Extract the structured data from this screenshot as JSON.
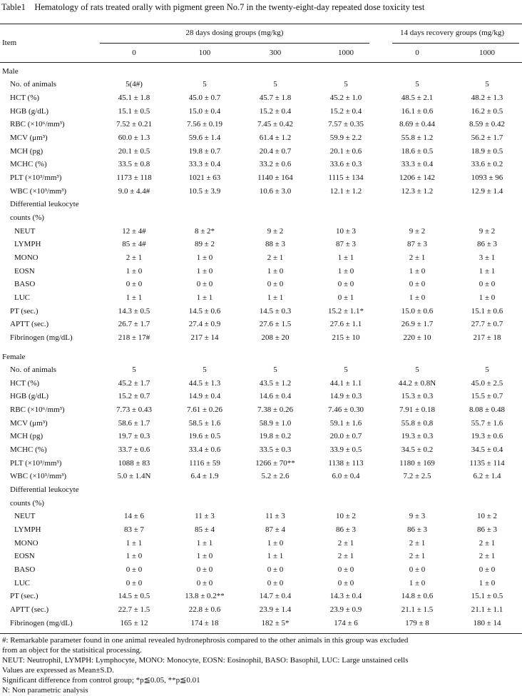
{
  "title": "Table1 Hematology of rats treated orally with pigment green No.7 in the twenty-eight-day repeated dose toxicity test",
  "header": {
    "item": "Item",
    "group1": "28 days dosing groups (mg/kg)",
    "group2": "14 days recovery groups (mg/kg)",
    "doses": [
      "0",
      "100",
      "300",
      "1000",
      "0",
      "1000"
    ]
  },
  "sections": [
    {
      "label": "Male",
      "rows": [
        {
          "item": "No. of animals",
          "values": [
            "5(4#)",
            "5",
            "5",
            "5",
            "5",
            "5"
          ]
        },
        {
          "item": "HCT (%)",
          "values": [
            "45.1 ± 1.8",
            "45.0 ± 0.7",
            "45.7 ± 1.8",
            "45.2 ± 1.0",
            "48.5 ± 2.1",
            "48.2 ± 1.3"
          ]
        },
        {
          "item": "HGB (g/dL)",
          "values": [
            "15.1 ± 0.5",
            "15.0 ± 0.4",
            "15.2 ± 0.4",
            "15.2 ± 0.4",
            "16.1 ± 0.6",
            "16.2 ± 0.5"
          ]
        },
        {
          "item": "RBC (×10⁶/mm³)",
          "values": [
            "7.52 ± 0.21",
            "7.56 ± 0.19",
            "7.45 ± 0.42",
            "7.57 ± 0.35",
            "8.69 ± 0.44",
            "8.59 ± 0.42"
          ]
        },
        {
          "item": "MCV (μm³)",
          "values": [
            "60.0 ± 1.3",
            "59.6 ± 1.4",
            "61.4 ± 1.2",
            "59.9 ± 2.2",
            "55.8 ± 1.2",
            "56.2 ± 1.7"
          ]
        },
        {
          "item": "MCH (pg)",
          "values": [
            "20.1 ± 0.5",
            "19.8 ± 0.7",
            "20.4 ± 0.7",
            "20.1 ± 0.6",
            "18.6 ± 0.5",
            "18.9 ± 0.5"
          ]
        },
        {
          "item": "MCHC (%)",
          "values": [
            "33.5 ± 0.8",
            "33.3 ± 0.4",
            "33.2 ± 0.6",
            "33.6 ± 0.3",
            "33.3 ± 0.4",
            "33.6 ± 0.2"
          ]
        },
        {
          "item": "PLT (×10³/mm³)",
          "values": [
            "1173 ± 118",
            "1021 ± 63",
            "1140 ± 164",
            "1115 ± 134",
            "1206 ± 142",
            "1093 ± 96"
          ]
        },
        {
          "item": "WBC (×10³/mm³)",
          "values": [
            "9.0 ± 4.4#",
            "10.5 ± 3.9",
            "10.6 ± 3.0",
            "12.1 ± 1.2",
            "12.3 ± 1.2",
            "12.9 ± 1.4"
          ]
        }
      ],
      "differential": {
        "label": [
          "Differential leukocyte",
          "counts (%)"
        ],
        "rows": [
          {
            "item": "NEUT",
            "values": [
              "12 ± 4#",
              "8 ± 2*",
              "9 ± 2",
              "10 ± 3",
              "9 ± 2",
              "9 ± 2"
            ]
          },
          {
            "item": "LYMPH",
            "values": [
              "85 ± 4#",
              "89 ± 2",
              "88 ± 3",
              "87 ± 3",
              "87 ± 3",
              "86 ± 3"
            ]
          },
          {
            "item": "MONO",
            "values": [
              "2 ± 1",
              "1 ± 0",
              "2 ± 1",
              "1 ± 1",
              "2 ± 1",
              "3 ± 1"
            ]
          },
          {
            "item": "EOSN",
            "values": [
              "1 ± 0",
              "1 ± 0",
              "1 ± 0",
              "1 ± 0",
              "1 ± 0",
              "1 ± 1"
            ]
          },
          {
            "item": "BASO",
            "values": [
              "0 ± 0",
              "0 ± 0",
              "0 ± 0",
              "0 ± 0",
              "0 ± 0",
              "0 ± 0"
            ]
          },
          {
            "item": "LUC",
            "values": [
              "1 ± 1",
              "1 ± 1",
              "1 ± 1",
              "0 ± 1",
              "1 ± 0",
              "1 ± 0"
            ]
          }
        ]
      },
      "rows_after": [
        {
          "item": "PT (sec.)",
          "values": [
            "14.3 ± 0.5",
            "14.5 ± 0.6",
            "14.5 ± 0.3",
            "15.2 ± 1.1*",
            "15.0 ± 0.6",
            "15.1 ± 0.6"
          ]
        },
        {
          "item": "APTT (sec.)",
          "values": [
            "26.7 ± 1.7",
            "27.4 ± 0.9",
            "27.6 ± 1.5",
            "27.6 ± 1.1",
            "26.9 ± 1.7",
            "27.7 ± 0.7"
          ]
        },
        {
          "item": "Fibrinogen (mg/dL)",
          "values": [
            "218 ± 17#",
            "217 ± 14",
            "208 ± 20",
            "215 ± 10",
            "220 ± 10",
            "217 ± 18"
          ]
        }
      ]
    },
    {
      "label": "Female",
      "rows": [
        {
          "item": "No. of animals",
          "values": [
            "5",
            "5",
            "5",
            "5",
            "5",
            "5"
          ]
        },
        {
          "item": "HCT (%)",
          "values": [
            "45.2 ± 1.7",
            "44.5 ± 1.3",
            "43.5 ± 1.2",
            "44.1 ± 1.1",
            "44.2 ± 0.8N",
            "45.0 ± 2.5"
          ]
        },
        {
          "item": "HGB (g/dL)",
          "values": [
            "15.2 ± 0.7",
            "14.9 ± 0.4",
            "14.6 ± 0.4",
            "14.9 ± 0.3",
            "15.3 ± 0.3",
            "15.5 ± 0.7"
          ]
        },
        {
          "item": "RBC (×10⁶/mm³)",
          "values": [
            "7.73 ± 0.43",
            "7.61 ± 0.26",
            "7.38 ± 0.26",
            "7.46 ± 0.30",
            "7.91 ± 0.18",
            "8.08 ± 0.48"
          ]
        },
        {
          "item": "MCV (μm³)",
          "values": [
            "58.6 ± 1.7",
            "58.5 ± 1.6",
            "58.9 ± 1.0",
            "59.1 ± 1.6",
            "55.8 ± 0.8",
            "55.7 ± 1.6"
          ]
        },
        {
          "item": "MCH (pg)",
          "values": [
            "19.7 ± 0.3",
            "19.6 ± 0.5",
            "19.8 ± 0.2",
            "20.0 ± 0.7",
            "19.3 ± 0.3",
            "19.3 ± 0.6"
          ]
        },
        {
          "item": "MCHC (%)",
          "values": [
            "33.7 ± 0.6",
            "33.4 ± 0.6",
            "33.5 ± 0.3",
            "33.9 ± 0.5",
            "34.5 ± 0.2",
            "34.5 ± 0.4"
          ]
        },
        {
          "item": "PLT (×10³/mm³)",
          "values": [
            "1088 ± 83",
            "1116 ± 59",
            "1266 ± 70**",
            "1138 ± 113",
            "1180 ± 169",
            "1135 ± 114"
          ]
        },
        {
          "item": "WBC (×10³/mm³)",
          "values": [
            "5.0 ± 1.4N",
            "6.4 ± 1.9",
            "5.2 ± 2.6",
            "6.0 ± 0.4",
            "7.2 ± 2.5",
            "6.2 ± 1.4"
          ]
        }
      ],
      "differential": {
        "label": [
          "Differential leukocyte",
          "counts (%)"
        ],
        "rows": [
          {
            "item": "NEUT",
            "values": [
              "14 ± 6",
              "11 ± 3",
              "11 ± 3",
              "10 ± 2",
              "9 ± 3",
              "10 ± 2"
            ]
          },
          {
            "item": "LYMPH",
            "values": [
              "83 ± 7",
              "85 ± 4",
              "87 ± 4",
              "86 ± 3",
              "86 ± 3",
              "86 ± 3"
            ]
          },
          {
            "item": "MONO",
            "values": [
              "1 ± 1",
              "1 ± 1",
              "1 ± 0",
              "2 ± 1",
              "2 ± 1",
              "2 ± 1"
            ]
          },
          {
            "item": "EOSN",
            "values": [
              "1 ± 0",
              "1 ± 0",
              "1 ± 1",
              "2 ± 1",
              "2 ± 1",
              "2 ± 1"
            ]
          },
          {
            "item": "BASO",
            "values": [
              "0 ± 0",
              "0 ± 0",
              "0 ± 0",
              "0 ± 0",
              "0 ± 0",
              "0 ± 0"
            ]
          },
          {
            "item": "LUC",
            "values": [
              "0 ± 0",
              "0 ± 0",
              "0 ± 0",
              "0 ± 0",
              "1 ± 0",
              "1 ± 0"
            ]
          }
        ]
      },
      "rows_after": [
        {
          "item": "PT (sec.)",
          "values": [
            "14.5 ± 0.5",
            "13.8 ± 0.2**",
            "14.7 ± 0.4",
            "14.3 ± 0.4",
            "14.8 ± 0.6",
            "15.1 ± 0.5"
          ]
        },
        {
          "item": "APTT (sec.)",
          "values": [
            "22.7 ± 1.5",
            "22.8 ± 0.6",
            "23.9 ± 1.4",
            "23.9 ± 0.9",
            "21.1 ± 1.5",
            "21.1 ± 1.1"
          ]
        },
        {
          "item": "Fibrinogen (mg/dL)",
          "values": [
            "165 ± 12",
            "174 ± 18",
            "182 ± 5*",
            "174 ± 6",
            "179 ± 8",
            "180 ± 14"
          ]
        }
      ]
    }
  ],
  "footnotes": [
    "#: Remarkable parameter found in one animal revealed hydronephrosis compared to the other animals in this group was excluded",
    "from an object for the statisitical processing.",
    "NEUT: Neutrophil, LYMPH: Lymphocyte, MONO: Monocyte, EOSN: Eosinophil, BASO: Basophil, LUC: Large unstained cells",
    "Values are expressed as Mean±S.D.",
    "Significant difference from control group; *p≦0.05, **p≦0.01",
    "N: Non parametric analysis"
  ]
}
